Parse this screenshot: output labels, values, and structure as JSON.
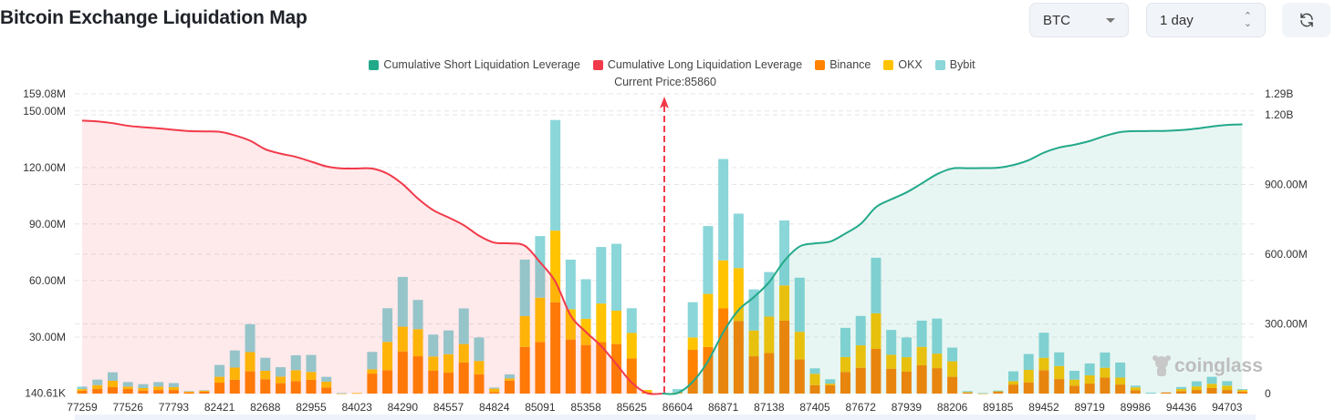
{
  "header": {
    "title": "Bitcoin Exchange Liquidation Map",
    "symbol_select": "BTC",
    "range_select": "1 day",
    "refresh_icon": "refresh-icon"
  },
  "legend": [
    {
      "label": "Cumulative Short Liquidation Leverage",
      "color": "#22a98a"
    },
    {
      "label": "Cumulative Long Liquidation Leverage",
      "color": "#f23a4a"
    },
    {
      "label": "Binance",
      "color": "#ff8200"
    },
    {
      "label": "OKX",
      "color": "#ffc300"
    },
    {
      "label": "Bybit",
      "color": "#8ad6d9"
    }
  ],
  "current_price_label": "Current Price:85860",
  "watermark": "coinglass",
  "chart_data": {
    "type": "bar",
    "stacked": true,
    "current_price": 85860,
    "x_tick_labels": [
      "77259",
      "77526",
      "77793",
      "82421",
      "82688",
      "82955",
      "84023",
      "84290",
      "84557",
      "84824",
      "85091",
      "85358",
      "85625",
      "86604",
      "86871",
      "87138",
      "87405",
      "87672",
      "87939",
      "88206",
      "89185",
      "89452",
      "89719",
      "89986",
      "94436",
      "94703"
    ],
    "left_axis": {
      "unit": "USD",
      "ylim": [
        0.14061,
        159.08
      ],
      "tick_labels": [
        "140.61K",
        "30.00M",
        "60.00M",
        "90.00M",
        "120.00M",
        "150.00M",
        "159.08M"
      ],
      "tick_values_m": [
        0.14061,
        30,
        60,
        90,
        120,
        150,
        159.08
      ]
    },
    "right_axis": {
      "ylim": [
        0,
        1290
      ],
      "tick_labels": [
        "0",
        "300.00M",
        "600.00M",
        "900.00M",
        "1.20B",
        "1.29B"
      ],
      "tick_values_m": [
        0,
        300,
        600,
        900,
        1200,
        1290
      ]
    },
    "grid": true,
    "legend_position": "top",
    "bar_values_unit": "M",
    "series": [
      {
        "name": "Binance",
        "values": [
          1.6,
          2.4,
          3.4,
          2.4,
          1.6,
          1.9,
          1.9,
          0.5,
          1.0,
          5.8,
          7.3,
          11.8,
          7.6,
          5.5,
          6.6,
          7.3,
          3.2,
          0.1,
          0.2,
          10.6,
          12.4,
          22.4,
          19.8,
          12.1,
          11.1,
          16.5,
          10.2,
          0.8,
          6.9,
          24.8,
          27.4,
          48.4,
          28.7,
          25.8,
          27.3,
          26.3,
          18.7,
          0.5,
          0,
          0.3,
          23.2,
          24.7,
          45.2,
          38.5,
          19.8,
          21.5,
          38.7,
          18.1,
          4.5,
          4.5,
          11.5,
          13.7,
          23.7,
          13.2,
          11.6,
          15.0,
          13.5,
          8.9,
          0.5,
          0.1,
          1.0,
          4.8,
          5.8,
          12.4,
          7.7,
          4.2,
          5.3,
          8.5,
          4.8,
          1.8,
          0,
          0.6,
          1.3,
          1.9,
          2.9,
          1.9,
          1.1
        ]
      },
      {
        "name": "OKX",
        "values": [
          0.8,
          2.1,
          3.4,
          1.3,
          1.3,
          1.8,
          1.5,
          0.6,
          0.5,
          3.1,
          6.5,
          10.2,
          4.5,
          3.5,
          5.8,
          4.2,
          3.1,
          0.1,
          0.1,
          2.3,
          15.0,
          13.1,
          14.4,
          7.6,
          9.8,
          9.8,
          7.1,
          1.8,
          1.1,
          16.3,
          23.5,
          38.1,
          16.1,
          13.9,
          20.5,
          17.7,
          13.5,
          1.4,
          0,
          0.3,
          6.6,
          28.2,
          25.5,
          28.1,
          13.7,
          19.4,
          18.7,
          14.7,
          6.0,
          0.8,
          7.9,
          11.9,
          18.9,
          7.4,
          7.7,
          9.8,
          7.7,
          8.2,
          0.3,
          0.1,
          0.2,
          1.8,
          6.8,
          6.6,
          6.9,
          3.2,
          4.4,
          5.2,
          3.7,
          1.5,
          0,
          0,
          1.1,
          1.9,
          2.3,
          2.3,
          0.8
        ]
      },
      {
        "name": "Bybit",
        "values": [
          1.3,
          2.9,
          4.5,
          2.4,
          2.1,
          2.4,
          2.2,
          0.2,
          0.3,
          6.3,
          9.1,
          14.8,
          6.9,
          5.0,
          7.9,
          9.0,
          2.6,
          0.1,
          0,
          9.2,
          17.9,
          26.4,
          15.5,
          11.6,
          12.6,
          18.9,
          12.5,
          0.6,
          2.2,
          30.0,
          32.7,
          58.7,
          26.3,
          21.0,
          30.0,
          35.5,
          13.1,
          0,
          0,
          1.8,
          18.7,
          36.0,
          53.8,
          28.9,
          21.8,
          23.6,
          34.5,
          28.7,
          2.9,
          2.3,
          15.5,
          15.6,
          29.5,
          13.2,
          10.5,
          13.9,
          18.6,
          7.3,
          0.5,
          0.1,
          0.4,
          5.2,
          8.4,
          13.3,
          7.3,
          4.7,
          6.3,
          8.1,
          8.0,
          0.9,
          0.5,
          0,
          1.1,
          2.7,
          3.7,
          2.4,
          0.5
        ]
      }
    ],
    "line_series": [
      {
        "name": "Cumulative Long Liquidation Leverage",
        "axis": "right",
        "side": "below current price",
        "end_value_m": 1175
      },
      {
        "name": "Cumulative Short Liquidation Leverage",
        "axis": "right",
        "side": "above current price",
        "end_value_m": 1159
      }
    ]
  }
}
